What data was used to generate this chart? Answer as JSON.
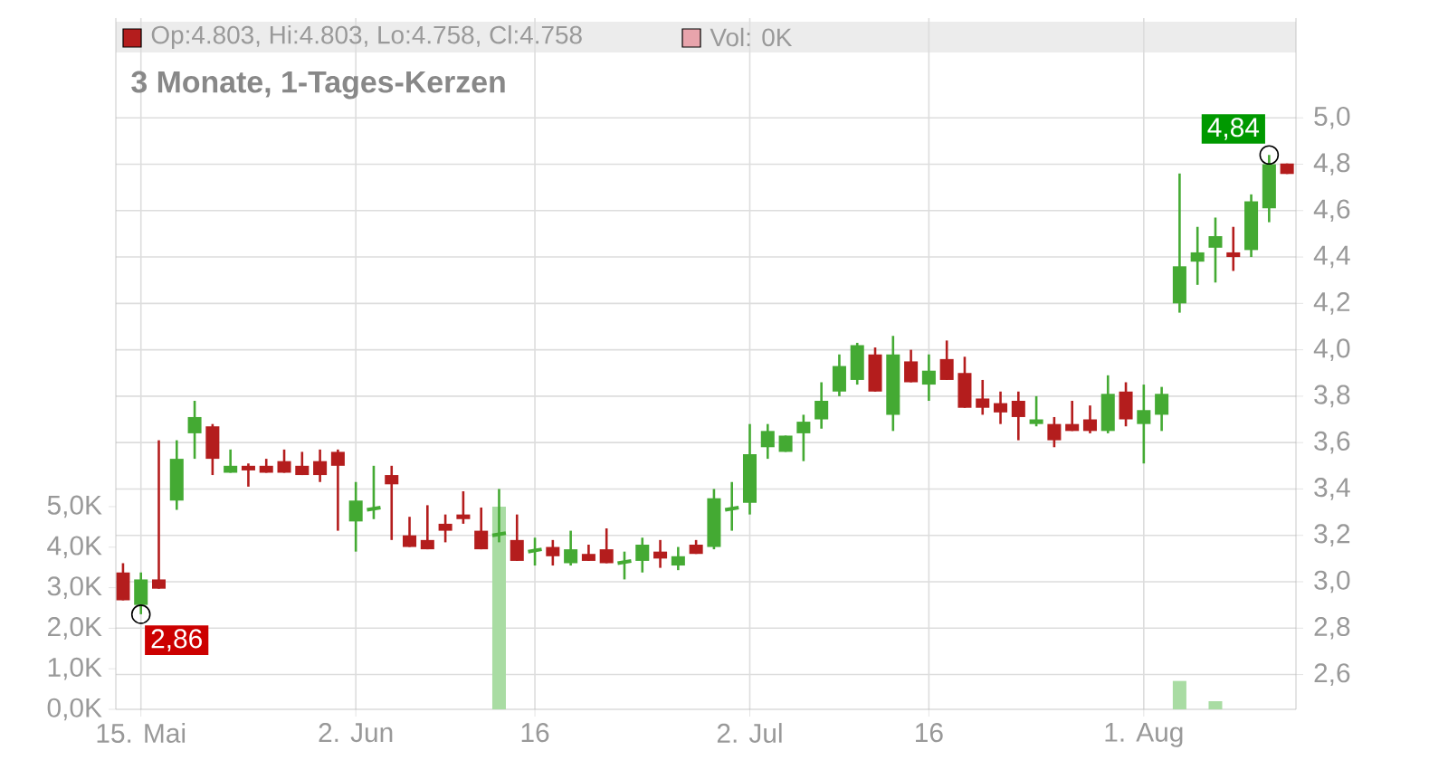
{
  "chart_data": {
    "type": "candlestick",
    "title": "3 Monate, 1-Tages-Kerzen",
    "categories": [
      null,
      "15. Mai",
      null,
      null,
      null,
      null,
      null,
      null,
      null,
      null,
      null,
      null,
      null,
      "2. Jun",
      null,
      null,
      null,
      null,
      null,
      null,
      null,
      null,
      null,
      "16",
      null,
      null,
      null,
      null,
      null,
      null,
      null,
      null,
      null,
      null,
      null,
      "2. Jul",
      null,
      null,
      null,
      null,
      null,
      null,
      null,
      null,
      null,
      "16",
      null,
      null,
      null,
      null,
      null,
      null,
      null,
      null,
      null,
      null,
      null,
      "1. Aug",
      null,
      null,
      null,
      null,
      null,
      null,
      null,
      null
    ],
    "series": [
      {
        "ohlc": [
          [
            3.04,
            3.08,
            2.92,
            2.92
          ],
          [
            2.9,
            3.04,
            2.86,
            3.01
          ],
          [
            3.01,
            3.61,
            2.97,
            2.97
          ],
          [
            3.35,
            3.61,
            3.31,
            3.53
          ],
          [
            3.64,
            3.78,
            3.53,
            3.71
          ],
          [
            3.67,
            3.68,
            3.46,
            3.53
          ],
          [
            3.47,
            3.57,
            3.47,
            3.5
          ],
          [
            3.5,
            3.51,
            3.41,
            3.48
          ],
          [
            3.5,
            3.53,
            3.47,
            3.47
          ],
          [
            3.52,
            3.57,
            3.47,
            3.47
          ],
          [
            3.5,
            3.56,
            3.46,
            3.46
          ],
          [
            3.52,
            3.57,
            3.43,
            3.46
          ],
          [
            3.56,
            3.57,
            3.22,
            3.5
          ],
          [
            3.26,
            3.43,
            3.13,
            3.35
          ],
          [
            3.31,
            3.5,
            3.27,
            3.32
          ],
          [
            3.46,
            3.5,
            3.18,
            3.42
          ],
          [
            3.2,
            3.28,
            3.15,
            3.15
          ],
          [
            3.18,
            3.33,
            3.14,
            3.14
          ],
          [
            3.25,
            3.29,
            3.17,
            3.22
          ],
          [
            3.29,
            3.39,
            3.25,
            3.27
          ],
          [
            3.22,
            3.32,
            3.14,
            3.14
          ],
          [
            3.2,
            3.4,
            3.17,
            3.21
          ],
          [
            3.18,
            3.29,
            3.09,
            3.09
          ],
          [
            3.13,
            3.19,
            3.07,
            3.14
          ],
          [
            3.15,
            3.18,
            3.07,
            3.11
          ],
          [
            3.08,
            3.22,
            3.07,
            3.14
          ],
          [
            3.12,
            3.16,
            3.09,
            3.09
          ],
          [
            3.14,
            3.23,
            3.08,
            3.08
          ],
          [
            3.08,
            3.13,
            3.01,
            3.09
          ],
          [
            3.09,
            3.19,
            3.04,
            3.16
          ],
          [
            3.13,
            3.18,
            3.06,
            3.1
          ],
          [
            3.07,
            3.15,
            3.05,
            3.11
          ],
          [
            3.16,
            3.18,
            3.12,
            3.12
          ],
          [
            3.15,
            3.4,
            3.14,
            3.36
          ],
          [
            3.31,
            3.43,
            3.22,
            3.32
          ],
          [
            3.34,
            3.68,
            3.29,
            3.55
          ],
          [
            3.58,
            3.68,
            3.53,
            3.65
          ],
          [
            3.56,
            3.63,
            3.56,
            3.63
          ],
          [
            3.64,
            3.72,
            3.52,
            3.69
          ],
          [
            3.7,
            3.86,
            3.66,
            3.78
          ],
          [
            3.82,
            3.98,
            3.8,
            3.93
          ],
          [
            3.87,
            4.03,
            3.85,
            4.02
          ],
          [
            3.98,
            4.01,
            3.82,
            3.82
          ],
          [
            3.72,
            4.06,
            3.65,
            3.98
          ],
          [
            3.95,
            4.0,
            3.86,
            3.86
          ],
          [
            3.85,
            3.98,
            3.78,
            3.91
          ],
          [
            3.96,
            4.04,
            3.87,
            3.87
          ],
          [
            3.9,
            3.97,
            3.75,
            3.75
          ],
          [
            3.79,
            3.87,
            3.72,
            3.75
          ],
          [
            3.77,
            3.82,
            3.68,
            3.73
          ],
          [
            3.78,
            3.82,
            3.61,
            3.71
          ],
          [
            3.68,
            3.8,
            3.67,
            3.7
          ],
          [
            3.68,
            3.71,
            3.58,
            3.61
          ],
          [
            3.68,
            3.78,
            3.65,
            3.65
          ],
          [
            3.7,
            3.76,
            3.64,
            3.65
          ],
          [
            3.65,
            3.89,
            3.64,
            3.81
          ],
          [
            3.82,
            3.86,
            3.67,
            3.7
          ],
          [
            3.68,
            3.85,
            3.51,
            3.74
          ],
          [
            3.72,
            3.84,
            3.65,
            3.81
          ],
          [
            4.2,
            4.76,
            4.16,
            4.36
          ],
          [
            4.38,
            4.53,
            4.28,
            4.42
          ],
          [
            4.44,
            4.57,
            4.29,
            4.49
          ],
          [
            4.42,
            4.53,
            4.34,
            4.4
          ],
          [
            4.43,
            4.67,
            4.4,
            4.64
          ],
          [
            4.61,
            4.84,
            4.55,
            4.8
          ],
          [
            4.803,
            4.803,
            4.758,
            4.758
          ]
        ],
        "colors": [
          "#b41d1d",
          "#44aa33",
          "#b41d1d",
          "#44aa33",
          "#44aa33",
          "#b41d1d",
          "#44aa33",
          "#b41d1d",
          "#b41d1d",
          "#b41d1d",
          "#b41d1d",
          "#b41d1d",
          "#b41d1d",
          "#44aa33",
          "#44aa33",
          "#b41d1d",
          "#b41d1d",
          "#b41d1d",
          "#b41d1d",
          "#b41d1d",
          "#b41d1d",
          "#44aa33",
          "#b41d1d",
          "#44aa33",
          "#b41d1d",
          "#44aa33",
          "#b41d1d",
          "#b41d1d",
          "#44aa33",
          "#44aa33",
          "#b41d1d",
          "#44aa33",
          "#b41d1d",
          "#44aa33",
          "#44aa33",
          "#44aa33",
          "#44aa33",
          "#44aa33",
          "#44aa33",
          "#44aa33",
          "#44aa33",
          "#44aa33",
          "#b41d1d",
          "#44aa33",
          "#b41d1d",
          "#44aa33",
          "#b41d1d",
          "#b41d1d",
          "#b41d1d",
          "#b41d1d",
          "#b41d1d",
          "#44aa33",
          "#b41d1d",
          "#b41d1d",
          "#b41d1d",
          "#44aa33",
          "#b41d1d",
          "#44aa33",
          "#44aa33",
          "#44aa33",
          "#44aa33",
          "#44aa33",
          "#b41d1d",
          "#44aa33",
          "#44aa33",
          "#b41d1d"
        ]
      },
      {
        "type": "bar",
        "axis": "y2",
        "color": "#a9dca3",
        "values": [
          null,
          null,
          null,
          null,
          null,
          null,
          null,
          null,
          null,
          null,
          null,
          null,
          null,
          null,
          null,
          null,
          null,
          null,
          null,
          null,
          null,
          5.0,
          null,
          null,
          null,
          null,
          null,
          null,
          null,
          null,
          null,
          null,
          null,
          null,
          null,
          null,
          null,
          null,
          null,
          null,
          null,
          null,
          null,
          null,
          null,
          null,
          null,
          null,
          null,
          null,
          null,
          null,
          null,
          null,
          null,
          null,
          null,
          null,
          null,
          0.7,
          null,
          0.2,
          null,
          null,
          null,
          null
        ]
      }
    ],
    "ylim": [
      2.45,
      5.43
    ],
    "yticks": [
      {
        "value": 2.6,
        "label": "2,6"
      },
      {
        "value": 2.8,
        "label": "2,8"
      },
      {
        "value": 3.0,
        "label": "3,0"
      },
      {
        "value": 3.2,
        "label": "3,2"
      },
      {
        "value": 3.4,
        "label": "3,4"
      },
      {
        "value": 3.6,
        "label": "3,6"
      },
      {
        "value": 3.8,
        "label": "3,8"
      },
      {
        "value": 4.0,
        "label": "4,0"
      },
      {
        "value": 4.2,
        "label": "4,2"
      },
      {
        "value": 4.4,
        "label": "4,4"
      },
      {
        "value": 4.6,
        "label": "4,6"
      },
      {
        "value": 4.8,
        "label": "4,8"
      },
      {
        "value": 5.0,
        "label": "5,0"
      }
    ],
    "y2lim": [
      0,
      17.05
    ],
    "y2ticks": [
      {
        "value": 0,
        "label": "0,0K"
      },
      {
        "value": 1,
        "label": "1,0K"
      },
      {
        "value": 2,
        "label": "2,0K"
      },
      {
        "value": 3,
        "label": "3,0K"
      },
      {
        "value": 4,
        "label": "4,0K"
      },
      {
        "value": 5,
        "label": "5,0K"
      }
    ],
    "grid": true,
    "annotations": [
      "Op:4.803, Hi:4.803, Lo:4.758, Cl:4.758",
      "Vol: 0K",
      {
        "text": "2,86",
        "x": "15. Mai",
        "y": 2.86
      },
      "4,84"
    ]
  }
}
